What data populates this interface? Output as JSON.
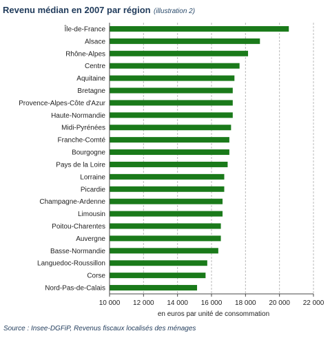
{
  "title": "Revenu médian en 2007 par région",
  "subtitle": "(illustration 2)",
  "source": "Source : Insee-DGFiP, Revenus fiscaux localisés des ménages",
  "colors": {
    "bar": "#1a7a1a",
    "grid": "#b8b8b8",
    "axis": "#444444",
    "text": "#1f3a5a"
  },
  "chart_data": {
    "type": "bar",
    "orientation": "horizontal",
    "xlabel": "en euros par unité de consommation",
    "xlim": [
      10000,
      22000
    ],
    "ticks": [
      10000,
      12000,
      14000,
      16000,
      18000,
      20000,
      22000
    ],
    "tick_labels": [
      "10 000",
      "12 000",
      "14 000",
      "16 000",
      "18 000",
      "20 000",
      "22 000"
    ],
    "grid": "vertical-dashed",
    "categories": [
      "Île-de-France",
      "Alsace",
      "Rhône-Alpes",
      "Centre",
      "Aquitaine",
      "Bretagne",
      "Provence-Alpes-Côte d'Azur",
      "Haute-Normandie",
      "Midi-Pyrénées",
      "Franche-Comté",
      "Bourgogne",
      "Pays de la Loire",
      "Lorraine",
      "Picardie",
      "Champagne-Ardenne",
      "Limousin",
      "Poitou-Charentes",
      "Auvergne",
      "Basse-Normandie",
      "Languedoc-Roussillon",
      "Corse",
      "Nord-Pas-de-Calais"
    ],
    "values": [
      20550,
      18850,
      18150,
      17650,
      17350,
      17250,
      17250,
      17250,
      17150,
      17050,
      17050,
      16950,
      16750,
      16750,
      16650,
      16650,
      16550,
      16550,
      16400,
      15750,
      15650,
      15150
    ]
  }
}
